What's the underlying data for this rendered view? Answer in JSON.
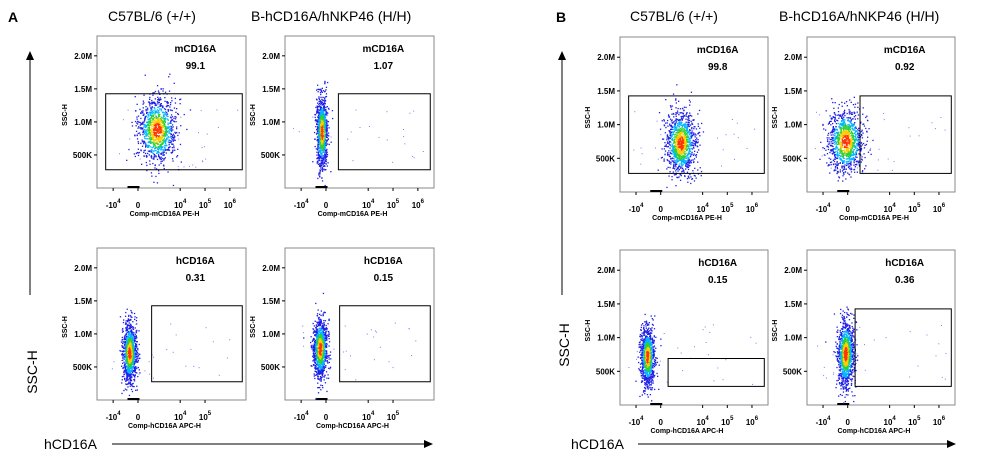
{
  "figure": {
    "panels": [
      {
        "letter": "A",
        "col_headers": [
          "C57BL/6 (+/+)",
          "B-hCD16A/hNKP46 (H/H)"
        ],
        "y_outer_label": "SSC-H",
        "x_outer_label": "hCD16A"
      },
      {
        "letter": "B",
        "col_headers": [
          "C57BL/6 (+/+)",
          "B-hCD16A/hNKP46 (H/H)"
        ],
        "y_outer_label": "SSC-H",
        "x_outer_label": "hCD16A"
      }
    ]
  },
  "colors": {
    "density_low": "#1e1ee6",
    "density_mid1": "#00b4ff",
    "density_mid2": "#2fd12f",
    "density_high": "#ffcc00",
    "density_peak": "#ff3300",
    "sparse": "#7b7bff"
  },
  "chart_data": [
    {
      "type": "scatter",
      "panel": "A",
      "column": "C57BL/6 (+/+)",
      "xlabel": "Comp-mCD16A PE-H",
      "ylabel": "SSC-H",
      "x_ticks": [
        "-10^4",
        "0",
        "10^4",
        "10^5",
        "10^6"
      ],
      "y_ticks": [
        "500K",
        "1.0M",
        "1.5M",
        "2.0M"
      ],
      "gate": {
        "label": "mCD16A",
        "percent": "99.1"
      },
      "cluster": {
        "x_decade": 0.75,
        "y": 880000,
        "sx_decade": 0.38,
        "sy": 250000
      },
      "ylim": [
        0,
        2300000
      ]
    },
    {
      "type": "scatter",
      "panel": "A",
      "column": "B-hCD16A/hNKP46 (H/H)",
      "xlabel": "Comp-mCD16A PE-H",
      "ylabel": "SSC-H",
      "x_ticks": [
        "-10^4",
        "0",
        "10^4",
        "10^5",
        "10^6"
      ],
      "y_ticks": [
        "500K",
        "1.0M",
        "1.5M",
        "2.0M"
      ],
      "gate": {
        "label": "mCD16A",
        "percent": "1.07"
      },
      "cluster": {
        "x_decade": -0.18,
        "y": 850000,
        "sx_decade": 0.11,
        "sy": 260000
      },
      "ylim": [
        0,
        2300000
      ]
    },
    {
      "type": "scatter",
      "panel": "A",
      "column": "C57BL/6 (+/+)",
      "xlabel": "Comp-hCD16A APC-H",
      "ylabel": "SSC-H",
      "x_ticks": [
        "-10^4",
        "0",
        "10^4",
        "10^5"
      ],
      "y_ticks": [
        "500K",
        "1.0M",
        "1.5M",
        "2.0M"
      ],
      "gate": {
        "label": "hCD16A",
        "percent": "0.31"
      },
      "cluster": {
        "x_decade": -0.35,
        "y": 720000,
        "sx_decade": 0.14,
        "sy": 220000
      },
      "ylim": [
        0,
        2300000
      ]
    },
    {
      "type": "scatter",
      "panel": "A",
      "column": "B-hCD16A/hNKP46 (H/H)",
      "xlabel": "Comp-hCD16A APC-H",
      "ylabel": "SSC-H",
      "x_ticks": [
        "-10^4",
        "0",
        "10^4",
        "10^5"
      ],
      "y_ticks": [
        "500K",
        "1.0M",
        "1.5M",
        "2.0M"
      ],
      "gate": {
        "label": "hCD16A",
        "percent": "0.15"
      },
      "cluster": {
        "x_decade": -0.25,
        "y": 780000,
        "sx_decade": 0.14,
        "sy": 220000
      },
      "ylim": [
        0,
        2300000
      ]
    },
    {
      "type": "scatter",
      "panel": "B",
      "column": "C57BL/6 (+/+)",
      "xlabel": "Comp-mCD16A PE-H",
      "ylabel": "SSC-H",
      "x_ticks": [
        "-10^4",
        "0",
        "10^4",
        "10^5",
        "10^6"
      ],
      "y_ticks": [
        "500K",
        "1.0M",
        "1.5M",
        "2.0M"
      ],
      "gate": {
        "label": "mCD16A",
        "percent": "99.8"
      },
      "cluster": {
        "x_decade": 0.8,
        "y": 730000,
        "sx_decade": 0.3,
        "sy": 230000
      },
      "ylim": [
        0,
        2300000
      ]
    },
    {
      "type": "scatter",
      "panel": "B",
      "column": "B-hCD16A/hNKP46 (H/H)",
      "xlabel": "Comp-mCD16A PE-H",
      "ylabel": "SSC-H",
      "x_ticks": [
        "-10^4",
        "0",
        "10^4",
        "10^5",
        "10^6"
      ],
      "y_ticks": [
        "500K",
        "1.0M",
        "1.5M",
        "2.0M"
      ],
      "gate": {
        "label": "mCD16A",
        "percent": "0.92"
      },
      "cluster": {
        "x_decade": -0.1,
        "y": 760000,
        "sx_decade": 0.35,
        "sy": 230000
      },
      "ylim": [
        0,
        2300000
      ]
    },
    {
      "type": "scatter",
      "panel": "B",
      "column": "C57BL/6 (+/+)",
      "xlabel": "Comp-hCD16A APC-H",
      "ylabel": "SSC-H",
      "x_ticks": [
        "-10^4",
        "0",
        "10^4",
        "10^5",
        "10^6"
      ],
      "y_ticks": [
        "500K",
        "1.0M",
        "1.5M",
        "2.0M"
      ],
      "gate": {
        "label": "hCD16A",
        "percent": "0.15"
      },
      "cluster": {
        "x_decade": -0.55,
        "y": 720000,
        "sx_decade": 0.14,
        "sy": 210000
      },
      "ylim": [
        0,
        2300000
      ]
    },
    {
      "type": "scatter",
      "panel": "B",
      "column": "B-hCD16A/hNKP46 (H/H)",
      "xlabel": "Comp-hCD16A APC-H",
      "ylabel": "SSC-H",
      "x_ticks": [
        "-10^4",
        "0",
        "10^4",
        "10^5",
        "10^6"
      ],
      "y_ticks": [
        "500K",
        "1.0M",
        "1.5M",
        "2.0M"
      ],
      "gate": {
        "label": "hCD16A",
        "percent": "0.36"
      },
      "cluster": {
        "x_decade": -0.1,
        "y": 760000,
        "sx_decade": 0.17,
        "sy": 240000
      },
      "ylim": [
        0,
        2300000
      ]
    }
  ]
}
